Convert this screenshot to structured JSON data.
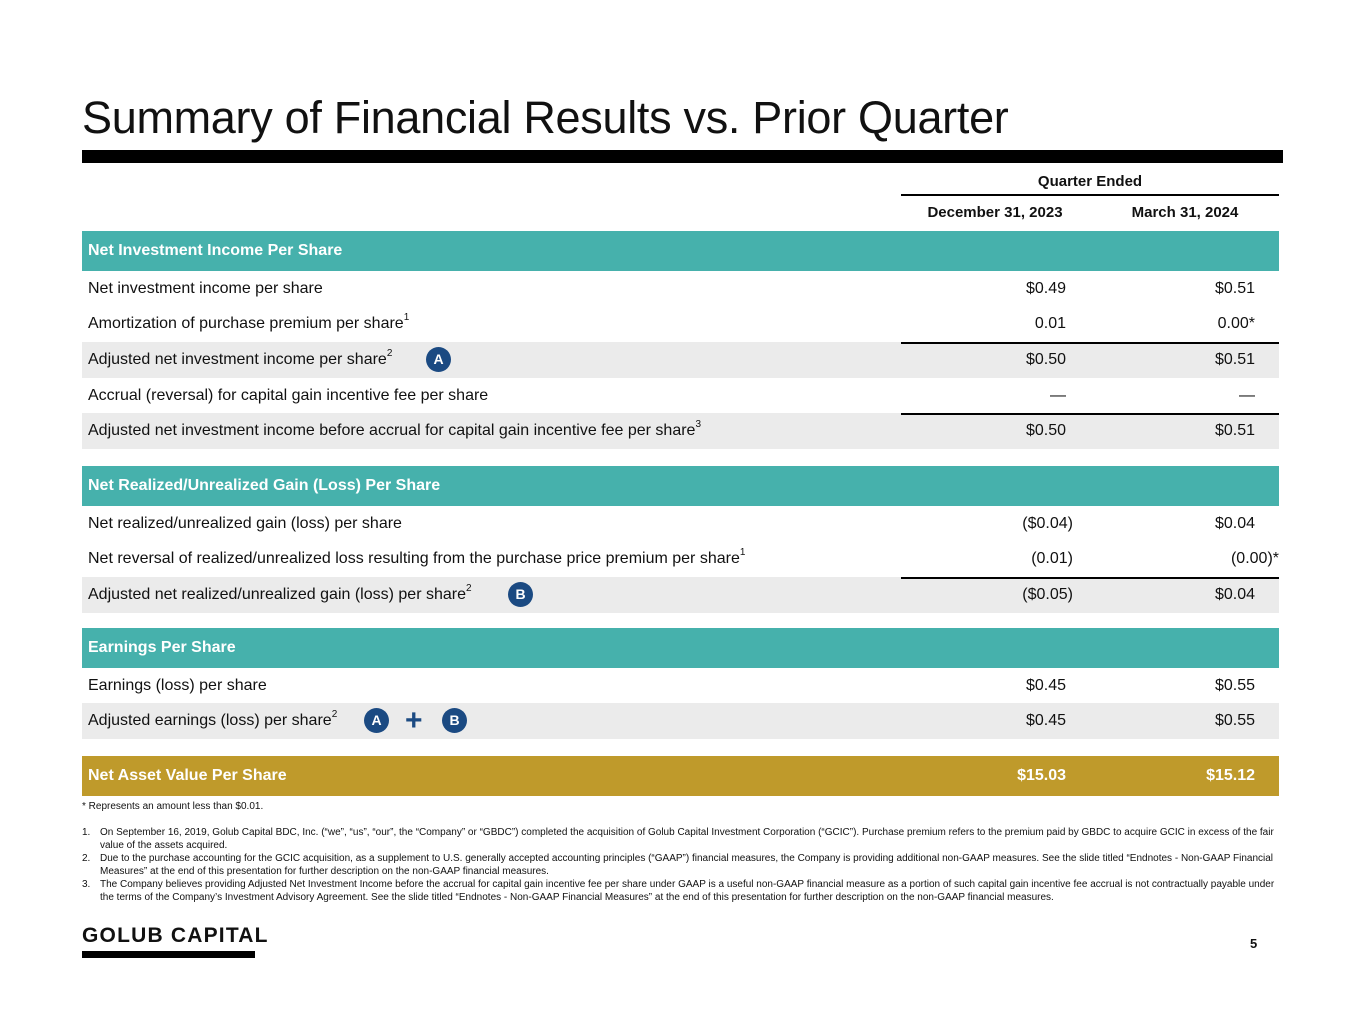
{
  "title": "Summary of Financial Results vs. Prior Quarter",
  "table": {
    "group_header": "Quarter Ended",
    "columns": [
      "December 31, 2023",
      "March 31, 2024"
    ],
    "sections": [
      {
        "header": "Net Investment Income Per Share",
        "rows": [
          {
            "label": "Net investment income per share",
            "sup": "",
            "values": [
              "$0.49",
              "$0.51"
            ]
          },
          {
            "label": "Amortization of purchase premium per share",
            "sup": "1",
            "values": [
              "0.01",
              "0.00*"
            ]
          },
          {
            "label": "Adjusted net investment income per share",
            "sup": "2",
            "values": [
              "$0.50",
              "$0.51"
            ],
            "badge": "A"
          },
          {
            "label": "Accrual (reversal) for capital gain incentive fee per share",
            "sup": "",
            "values": [
              "—",
              "—"
            ]
          },
          {
            "label": "Adjusted net investment income before accrual for capital gain incentive fee per share",
            "sup": "3",
            "values": [
              "$0.50",
              "$0.51"
            ]
          }
        ]
      },
      {
        "header": "Net Realized/Unrealized Gain (Loss) Per Share",
        "rows": [
          {
            "label": "Net realized/unrealized gain (loss) per share",
            "sup": "",
            "values": [
              "($0.04)",
              "$0.04"
            ]
          },
          {
            "label": "Net reversal of realized/unrealized loss resulting from the purchase price premium per share",
            "sup": "1",
            "values": [
              "(0.01)",
              "(0.00)*"
            ]
          },
          {
            "label": "Adjusted net realized/unrealized gain (loss) per share",
            "sup": "2",
            "values": [
              "($0.05)",
              "$0.04"
            ],
            "badge": "B"
          }
        ]
      },
      {
        "header": "Earnings Per Share",
        "rows": [
          {
            "label": "Earnings (loss) per share",
            "sup": "",
            "values": [
              "$0.45",
              "$0.55"
            ]
          },
          {
            "label": "Adjusted earnings (loss) per share",
            "sup": "2",
            "values": [
              "$0.45",
              "$0.55"
            ],
            "badges": [
              "A",
              "B"
            ]
          }
        ]
      }
    ],
    "nav": {
      "label": "Net Asset Value Per Share",
      "values": [
        "$15.03",
        "$15.12"
      ]
    }
  },
  "footnotes": {
    "star": "*    Represents an amount less than $0.01.",
    "items": [
      {
        "num": "1.",
        "text": "On September 16, 2019, Golub Capital BDC, Inc. (“we”, “us”, “our”, the “Company” or “GBDC”) completed the acquisition of Golub Capital Investment Corporation (“GCIC”). Purchase premium refers to the premium paid by GBDC to acquire GCIC in excess of the fair value of the assets acquired."
      },
      {
        "num": "2.",
        "text": "Due to the purchase accounting for the GCIC acquisition, as a supplement to U.S. generally accepted accounting principles (“GAAP”) financial measures, the Company is providing additional non-GAAP measures. See the slide titled “Endnotes - Non-GAAP Financial Measures” at the end of this presentation for further description on the non-GAAP financial measures."
      },
      {
        "num": "3.",
        "text": "The Company believes providing Adjusted Net Investment Income before the accrual for capital gain incentive fee per share under GAAP is a useful non-GAAP financial measure as a portion of such capital gain incentive fee accrual is not contractually payable under the terms of the Company’s Investment Advisory Agreement. See the slide titled “Endnotes - Non-GAAP Financial Measures” at the end of this presentation for further description on the non-GAAP financial measures."
      }
    ]
  },
  "logo": "GOLUB CAPITAL",
  "page_number": "5",
  "colors": {
    "teal": "#46b1ac",
    "gold": "#bf9a2b",
    "badge": "#1b4a82"
  }
}
